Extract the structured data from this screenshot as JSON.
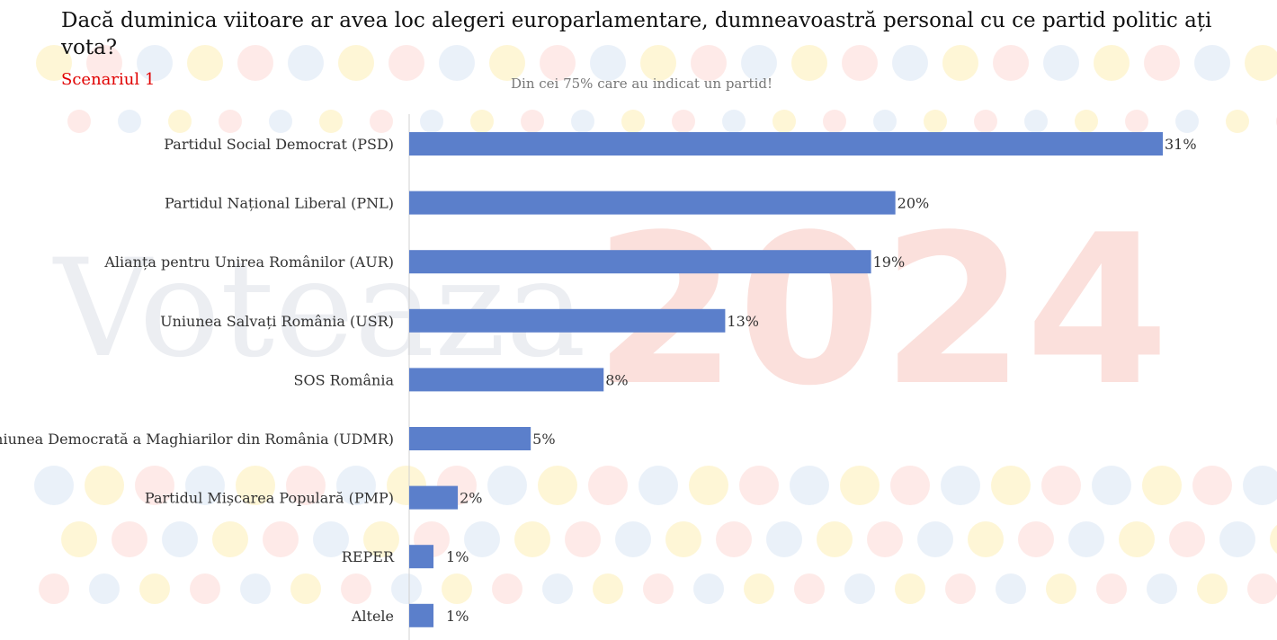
{
  "title": "Dacă duminica viitoare ar avea loc alegeri europarlamentare, dumneavoastră personal cu ce partid politic ați vota?",
  "scenario": "Scenariul 1",
  "subtitle": "Din cei 75% care au indicat un partid!",
  "watermark": {
    "word": "Voteaza",
    "year": "2024"
  },
  "colors": {
    "bar": "#5b7fcb",
    "title": "#111111",
    "scenario": "#e00000",
    "subtitle": "#777777"
  },
  "chart_data": {
    "type": "bar",
    "orientation": "horizontal",
    "categories": [
      "Partidul Social Democrat (PSD)",
      "Partidul Național Liberal (PNL)",
      "Alianța pentru Unirea Românilor (AUR)",
      "Uniunea Salvați România (USR)",
      "SOS România",
      "Uniunea Democrată a Maghiarilor din România (UDMR)",
      "Partidul Mișcarea Populară (PMP)",
      "REPER",
      "Altele"
    ],
    "values": [
      31,
      20,
      19,
      13,
      8,
      5,
      2,
      1,
      1
    ],
    "value_labels": [
      "31%",
      "20%",
      "19%",
      "13%",
      "8%",
      "5%",
      "2%",
      "1%",
      "1%"
    ],
    "unit": "%",
    "xlim": [
      0,
      31
    ],
    "grid": false,
    "legend": "none"
  }
}
